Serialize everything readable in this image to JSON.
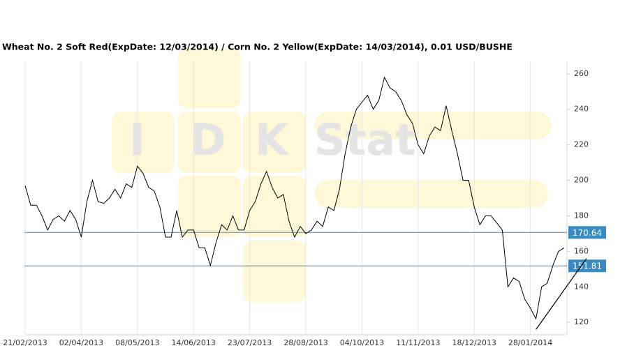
{
  "chart_data": {
    "type": "line",
    "title": "Wheat  No. 2 Soft Red(ExpDate: 12/03/2014) / Corn  No. 2 Yellow(ExpDate: 14/03/2014), 0.01 USD/BUSHE",
    "categories": [
      "21/02/2013",
      null,
      null,
      null,
      null,
      null,
      null,
      null,
      null,
      null,
      "02/04/2013",
      null,
      null,
      null,
      null,
      null,
      null,
      null,
      null,
      null,
      "08/05/2013",
      null,
      null,
      null,
      null,
      null,
      null,
      null,
      null,
      null,
      "14/06/2013",
      null,
      null,
      null,
      null,
      null,
      null,
      null,
      null,
      null,
      "23/07/2013",
      null,
      null,
      null,
      null,
      null,
      null,
      null,
      null,
      null,
      "28/08/2013",
      null,
      null,
      null,
      null,
      null,
      null,
      null,
      null,
      null,
      "04/10/2013",
      null,
      null,
      null,
      null,
      null,
      null,
      null,
      null,
      null,
      "11/11/2013",
      null,
      null,
      null,
      null,
      null,
      null,
      null,
      null,
      null,
      "18/12/2013",
      null,
      null,
      null,
      null,
      null,
      null,
      null,
      null,
      null,
      "28/01/2014",
      null,
      null,
      null,
      null,
      null,
      null
    ],
    "series": [
      {
        "color": "#000000",
        "values": [
          197,
          186,
          186,
          180,
          172,
          178,
          180,
          177,
          183,
          178,
          168,
          188,
          200,
          188,
          187,
          190,
          195,
          190,
          198,
          196,
          208,
          204,
          196,
          194,
          185,
          168,
          168,
          183,
          168,
          172,
          172,
          162,
          162,
          152,
          165,
          175,
          172,
          180,
          172,
          172,
          183,
          188,
          198,
          205,
          196,
          190,
          192,
          177,
          168,
          174,
          170,
          172,
          177,
          174,
          185,
          183,
          195,
          215,
          230,
          240,
          244,
          248,
          240,
          245,
          258,
          252,
          250,
          245,
          237,
          232,
          220,
          215,
          225,
          230,
          228,
          242,
          228,
          215,
          200,
          200,
          185,
          175,
          180,
          180,
          176,
          172,
          140,
          145,
          143,
          133,
          128,
          122,
          140,
          142,
          152,
          160,
          162
        ]
      }
    ],
    "hlines": [
      170.64,
      151.81
    ],
    "hline_color": "#3a8bbf",
    "trendline": {
      "x": [
        91,
        100
      ],
      "values": [
        116,
        156
      ]
    },
    "ylim": [
      113,
      267
    ],
    "yticks": [
      120,
      140,
      160,
      180,
      200,
      220,
      240,
      260
    ],
    "grid": true
  }
}
